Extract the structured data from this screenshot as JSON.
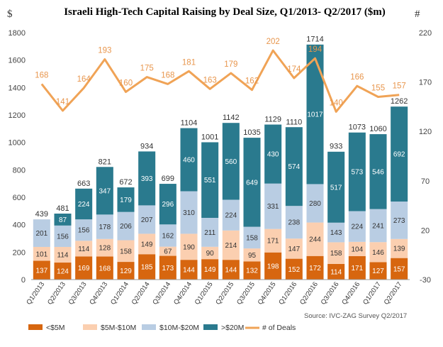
{
  "chart_data": {
    "type": "bar",
    "stacked": true,
    "title": "Israeli High-Tech Capital Raising by Deal Size, Q1/2013- Q2/2017 ($m)",
    "left_axis_unit": "$",
    "right_axis_unit": "#",
    "categories": [
      "Q1/2013",
      "Q2/2013",
      "Q3/2013",
      "Q4/2013",
      "Q1/2014",
      "Q2/2014",
      "Q3/2014",
      "Q4/2014",
      "Q1/2015",
      "Q2/2015",
      "Q3/2015",
      "Q4/2015",
      "Q1/2016",
      "Q2/2016",
      "Q3/2016",
      "Q4/2016",
      "Q1/2017",
      "Q2/2017"
    ],
    "series": [
      {
        "name": "<$5M",
        "color": "#d7660f",
        "label_color": "#ffffff",
        "values": [
          137,
          124,
          169,
          168,
          129,
          185,
          173,
          144,
          149,
          144,
          132,
          198,
          152,
          172,
          114,
          171,
          127,
          157
        ]
      },
      {
        "name": "$5M-$10M",
        "color": "#fbcfb0",
        "label_color": "#333333",
        "values": [
          101,
          114,
          114,
          128,
          158,
          149,
          67,
          190,
          90,
          214,
          95,
          171,
          147,
          244,
          158,
          104,
          146,
          139
        ]
      },
      {
        "name": "$10M-$20M",
        "color": "#b9cde3",
        "label_color": "#333333",
        "values": [
          201,
          156,
          156,
          178,
          206,
          207,
          162,
          310,
          211,
          224,
          158,
          331,
          238,
          280,
          143,
          224,
          241,
          273
        ]
      },
      {
        "name": ">$20M",
        "color": "#2a7a8e",
        "label_color": "#ffffff",
        "values": [
          null,
          87,
          224,
          347,
          179,
          393,
          296,
          460,
          551,
          560,
          649,
          430,
          574,
          1017,
          517,
          573,
          546,
          692
        ]
      }
    ],
    "totals": [
      439,
      481,
      663,
      821,
      672,
      934,
      699,
      1104,
      1001,
      1142,
      1035,
      1129,
      1110,
      1714,
      933,
      1073,
      1060,
      1262
    ],
    "deals": {
      "name": "# of Deals",
      "color": "#f0a356",
      "values": [
        168,
        141,
        164,
        193,
        160,
        175,
        168,
        181,
        163,
        179,
        162,
        202,
        174,
        194,
        140,
        166,
        155,
        157
      ]
    },
    "y_left": {
      "min": 0,
      "max": 1800,
      "ticks": [
        "0",
        "200",
        "400",
        "600",
        "800",
        "1000",
        "1200",
        "1400",
        "1600",
        "1800"
      ]
    },
    "y_right": {
      "min": -30,
      "max": 220,
      "ticks": [
        "-30",
        "20",
        "70",
        "120",
        "170",
        "220"
      ]
    },
    "grid": false,
    "legend_position": "bottom",
    "source": "Source: IVC-ZAG Survey Q2/2017"
  }
}
